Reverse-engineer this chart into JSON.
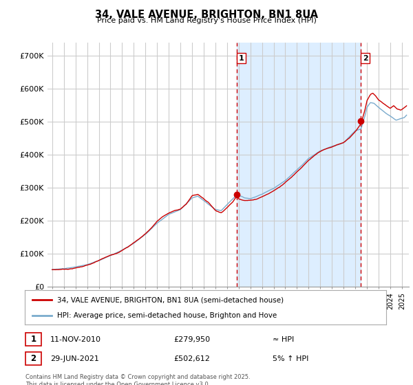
{
  "title": "34, VALE AVENUE, BRIGHTON, BN1 8UA",
  "subtitle": "Price paid vs. HM Land Registry's House Price Index (HPI)",
  "background_color": "#ffffff",
  "plot_bg_color": "#ffffff",
  "grid_color": "#cccccc",
  "sale1": {
    "date_num": 2010.86,
    "price": 279950,
    "label": "1"
  },
  "sale2": {
    "date_num": 2021.49,
    "price": 502612,
    "label": "2"
  },
  "yticks": [
    0,
    100000,
    200000,
    300000,
    400000,
    500000,
    600000,
    700000
  ],
  "ytick_labels": [
    "£0",
    "£100K",
    "£200K",
    "£300K",
    "£400K",
    "£500K",
    "£600K",
    "£700K"
  ],
  "xmin": 1994.6,
  "xmax": 2025.6,
  "ymin": 0,
  "ymax": 740000,
  "legend1_label": "34, VALE AVENUE, BRIGHTON, BN1 8UA (semi-detached house)",
  "legend2_label": "HPI: Average price, semi-detached house, Brighton and Hove",
  "table_rows": [
    {
      "num": "1",
      "date": "11-NOV-2010",
      "price": "£279,950",
      "hpi": "≈ HPI"
    },
    {
      "num": "2",
      "date": "29-JUN-2021",
      "price": "£502,612",
      "hpi": "5% ↑ HPI"
    }
  ],
  "footer": "Contains HM Land Registry data © Crown copyright and database right 2025.\nThis data is licensed under the Open Government Licence v3.0.",
  "line_color_red": "#cc0000",
  "line_color_blue": "#7aabcd",
  "sale_dot_color": "#cc0000",
  "vline_color": "#cc0000",
  "shade_color": "#ddeeff"
}
